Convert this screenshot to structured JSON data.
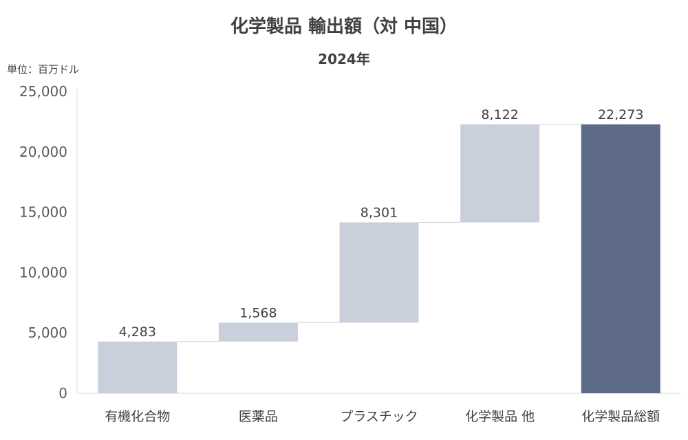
{
  "chart_data": {
    "type": "bar",
    "subtype": "waterfall",
    "title": "化学製品 輸出額（対 中国）",
    "subtitle": "2024年",
    "unit_label": "単位：百万ドル",
    "categories": [
      "有機化合物",
      "医薬品",
      "プラスチック",
      "化学製品 他",
      "化学製品総額"
    ],
    "values": [
      4283,
      1568,
      8301,
      8122,
      22273
    ],
    "value_labels": [
      "4,283",
      "1,568",
      "8,301",
      "8,122",
      "22,273"
    ],
    "is_total": [
      false,
      false,
      false,
      false,
      true
    ],
    "ylim": [
      0,
      25000
    ],
    "yticks": [
      0,
      5000,
      10000,
      15000,
      20000,
      25000
    ],
    "ytick_labels": [
      "0",
      "5,000",
      "10,000",
      "15,000",
      "20,000",
      "25,000"
    ],
    "grid": false,
    "legend": "none",
    "colors": {
      "increment": "#c9cfdb",
      "total": "#5e6b87",
      "connector": "#d0d0d0",
      "axis": "#d9d9d9"
    }
  }
}
